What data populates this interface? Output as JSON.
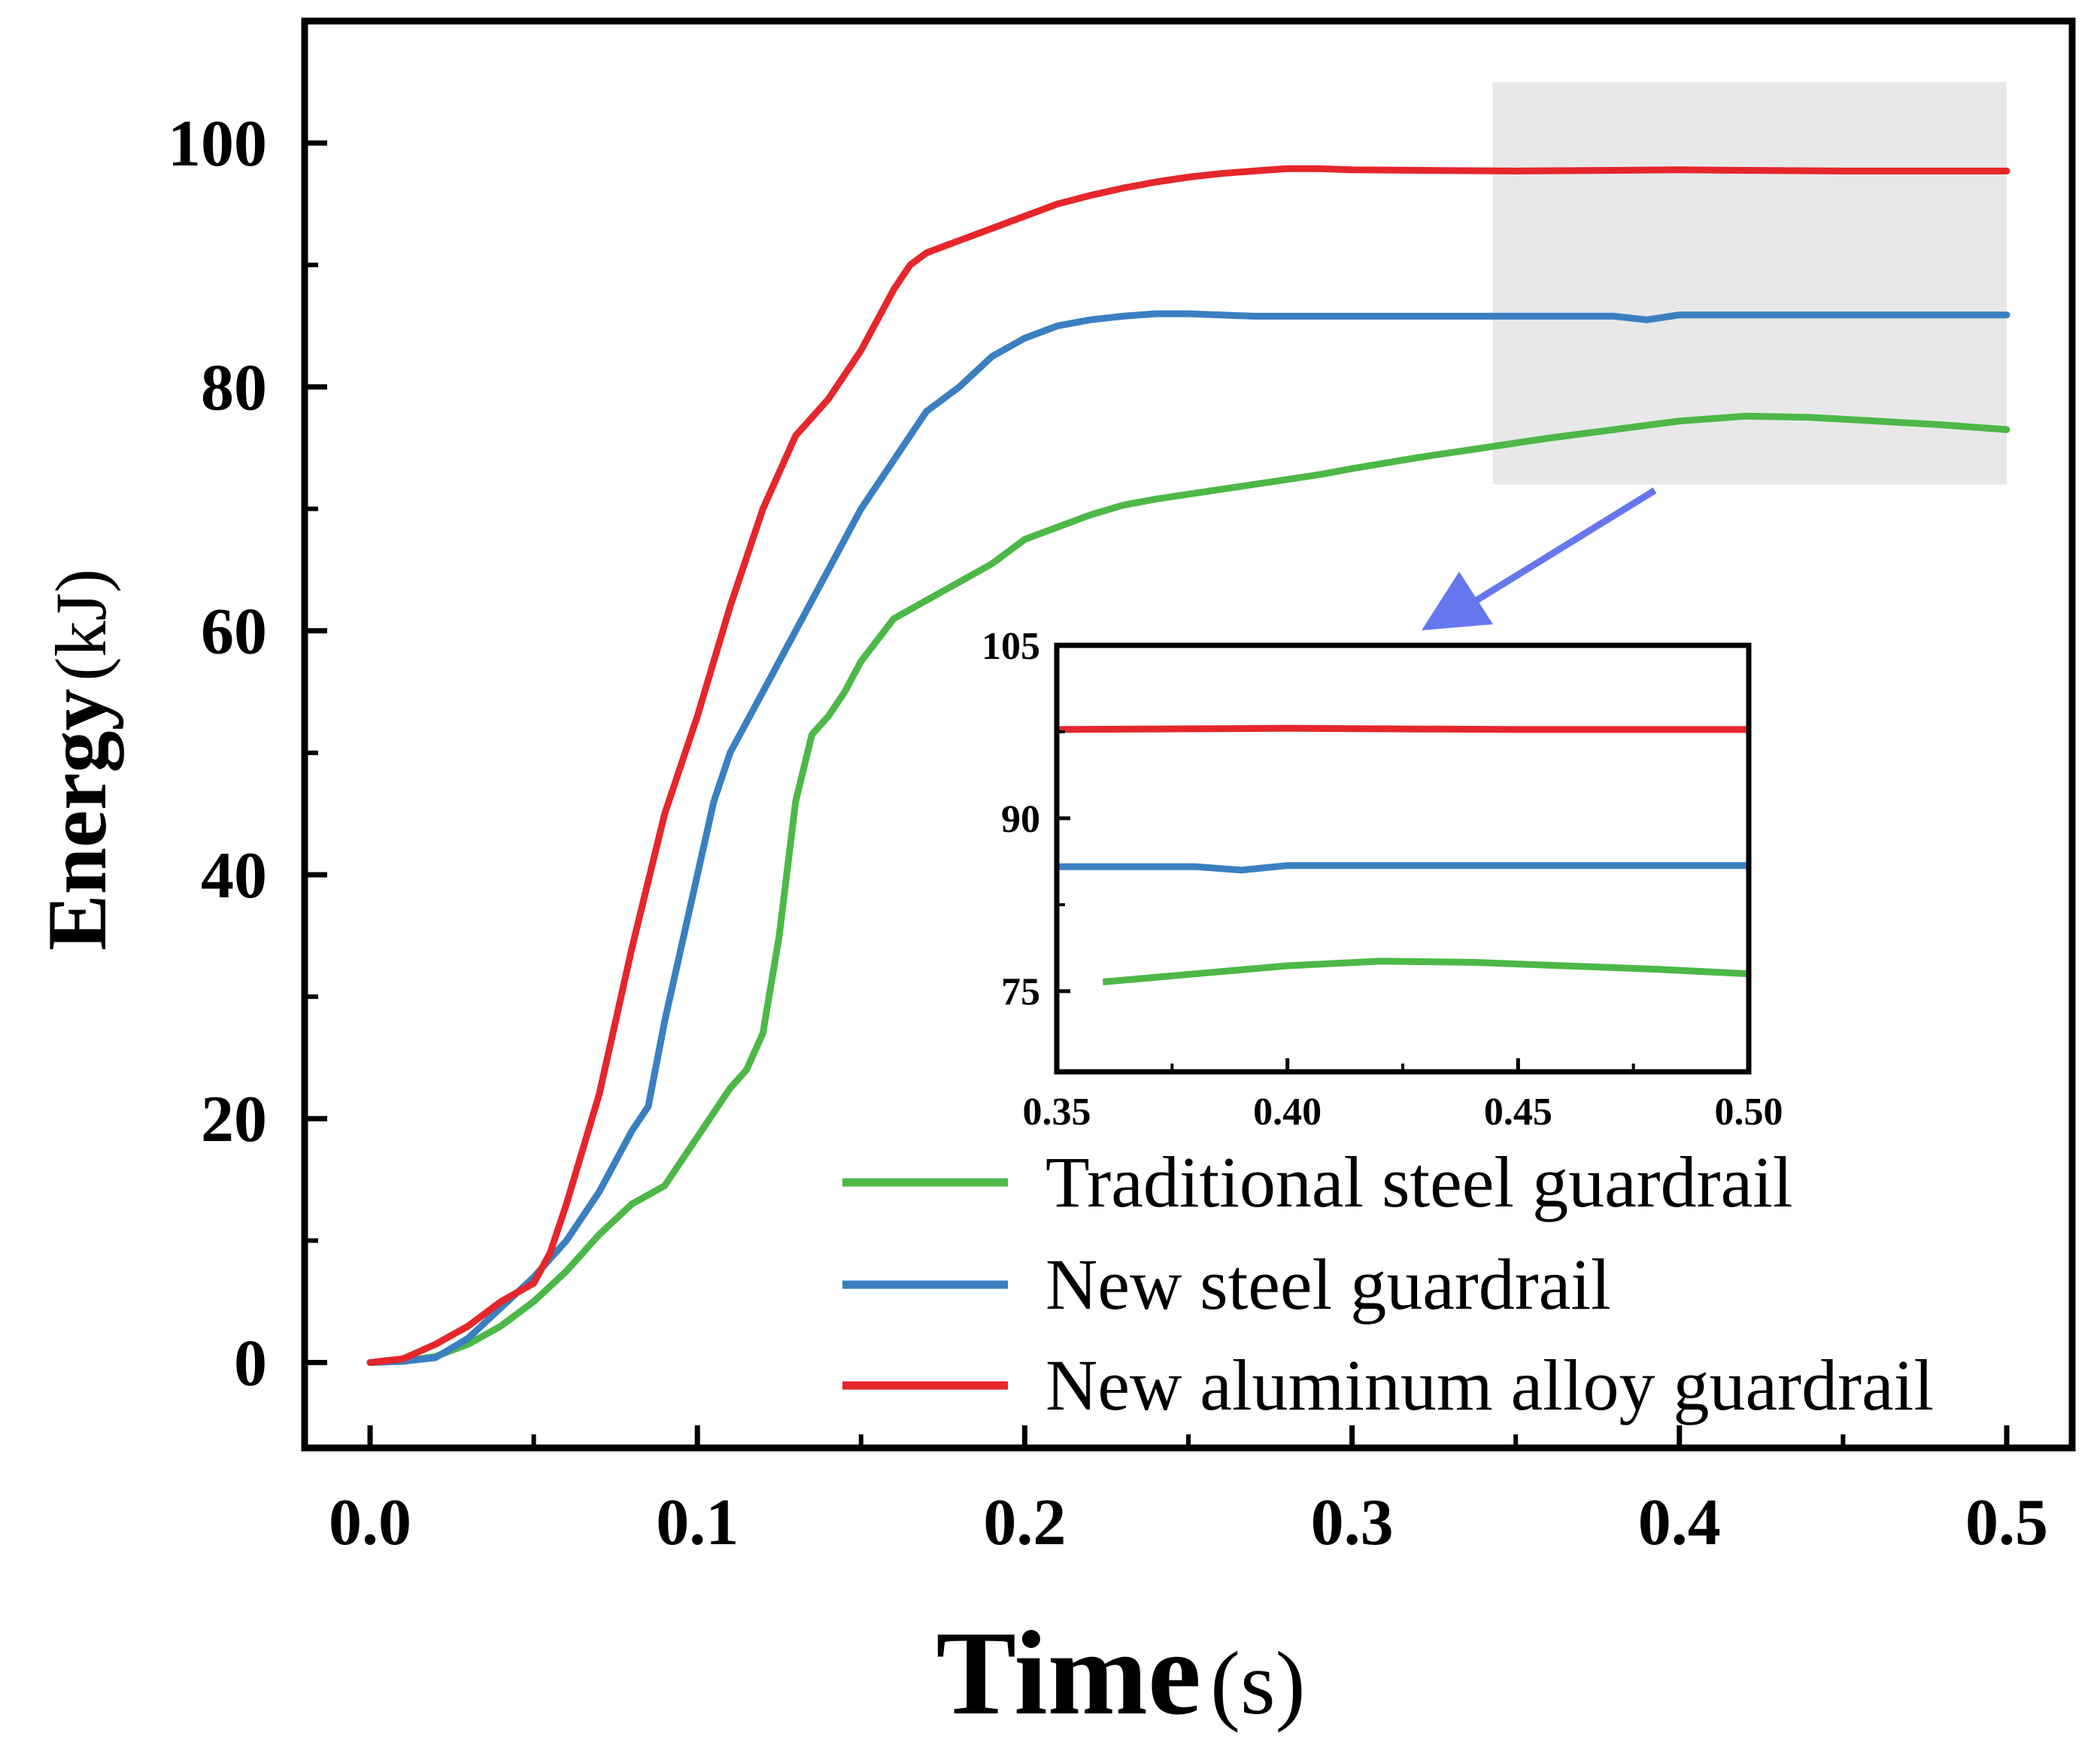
{
  "chart_data": {
    "type": "line",
    "xlabel": "Time",
    "xlabel_unit": "s",
    "ylabel": "Energy",
    "ylabel_unit": "kJ",
    "xlim": [
      -0.02,
      0.52
    ],
    "ylim": [
      -7,
      110
    ],
    "x_ticks": [
      "0.0",
      "0.1",
      "0.2",
      "0.3",
      "0.4",
      "0.5"
    ],
    "y_ticks": [
      "0",
      "20",
      "40",
      "60",
      "80",
      "100"
    ],
    "legend_position": "bottom-right",
    "highlight_region": {
      "x": [
        0.343,
        0.5
      ],
      "y": [
        72,
        105
      ]
    },
    "series": [
      {
        "name": "Traditional steel guardrail",
        "color": "#4cb847",
        "x": [
          0,
          0.01,
          0.02,
          0.03,
          0.04,
          0.05,
          0.06,
          0.07,
          0.08,
          0.09,
          0.1,
          0.11,
          0.115,
          0.12,
          0.125,
          0.13,
          0.135,
          0.14,
          0.145,
          0.15,
          0.16,
          0.17,
          0.18,
          0.19,
          0.2,
          0.21,
          0.22,
          0.23,
          0.24,
          0.25,
          0.26,
          0.27,
          0.28,
          0.29,
          0.3,
          0.32,
          0.34,
          0.36,
          0.38,
          0.4,
          0.42,
          0.44,
          0.46,
          0.48,
          0.5
        ],
        "values": [
          0,
          0.1,
          0.5,
          1.5,
          3,
          5,
          7.5,
          10.5,
          13,
          14.5,
          18.5,
          22.5,
          24,
          27,
          35,
          46,
          51.5,
          53,
          55,
          57.5,
          61,
          62.5,
          64,
          65.5,
          67.5,
          68.5,
          69.5,
          70.3,
          70.8,
          71.2,
          71.6,
          72,
          72.4,
          72.8,
          73.3,
          74.2,
          75,
          75.8,
          76.5,
          77.2,
          77.6,
          77.5,
          77.2,
          76.9,
          76.5
        ]
      },
      {
        "name": "New steel guardrail",
        "color": "#3a7fc1",
        "x": [
          0,
          0.01,
          0.02,
          0.03,
          0.04,
          0.05,
          0.06,
          0.07,
          0.08,
          0.085,
          0.09,
          0.095,
          0.1,
          0.105,
          0.11,
          0.12,
          0.13,
          0.14,
          0.15,
          0.16,
          0.17,
          0.18,
          0.19,
          0.2,
          0.21,
          0.22,
          0.23,
          0.24,
          0.25,
          0.27,
          0.3,
          0.35,
          0.38,
          0.39,
          0.4,
          0.45,
          0.5
        ],
        "values": [
          0,
          0.1,
          0.4,
          2,
          4.5,
          7,
          10,
          14,
          19,
          21,
          28,
          34,
          40,
          46,
          50,
          55,
          60,
          65,
          70,
          74,
          78,
          80,
          82.5,
          84,
          85,
          85.5,
          85.8,
          86,
          86,
          85.8,
          85.8,
          85.8,
          85.8,
          85.5,
          85.9,
          85.9,
          85.9
        ]
      },
      {
        "name": "New aluminum alloy guardrail",
        "color": "#e5262b",
        "x": [
          0,
          0.01,
          0.02,
          0.03,
          0.04,
          0.05,
          0.055,
          0.06,
          0.07,
          0.08,
          0.09,
          0.1,
          0.11,
          0.12,
          0.13,
          0.14,
          0.15,
          0.16,
          0.165,
          0.17,
          0.18,
          0.19,
          0.2,
          0.21,
          0.22,
          0.23,
          0.24,
          0.25,
          0.26,
          0.27,
          0.28,
          0.29,
          0.3,
          0.35,
          0.4,
          0.45,
          0.5
        ],
        "values": [
          0,
          0.3,
          1.5,
          3,
          5,
          6.5,
          9,
          13,
          22,
          34,
          45,
          53,
          62,
          70,
          76,
          79,
          83,
          88,
          90,
          91,
          92,
          93,
          94,
          95,
          95.7,
          96.3,
          96.8,
          97.2,
          97.5,
          97.7,
          97.9,
          97.9,
          97.8,
          97.7,
          97.8,
          97.7,
          97.7
        ]
      }
    ],
    "inset": {
      "xlim": [
        0.35,
        0.5
      ],
      "ylim": [
        68,
        105
      ],
      "x_ticks": [
        "0.35",
        "0.40",
        "0.45",
        "0.50"
      ],
      "y_ticks": [
        "75",
        "90",
        "105"
      ]
    }
  }
}
